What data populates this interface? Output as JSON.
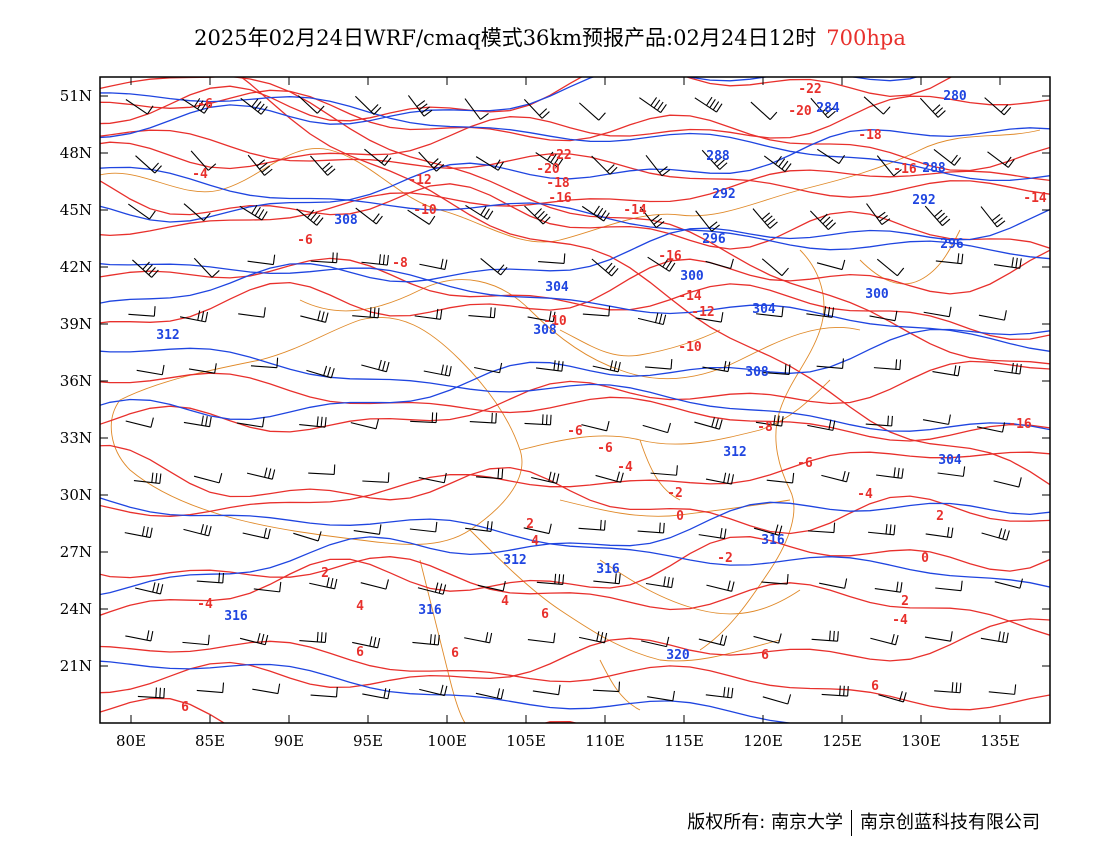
{
  "title": {
    "main": "2025年02月24日WRF/cmaq模式36km预报产品:02月24日12时",
    "level": "700hpa",
    "level_color": "#e8302c"
  },
  "axes": {
    "lat_ticks": [
      "51N",
      "48N",
      "45N",
      "42N",
      "39N",
      "36N",
      "33N",
      "30N",
      "27N",
      "24N",
      "21N"
    ],
    "lon_ticks": [
      "80E",
      "85E",
      "90E",
      "95E",
      "100E",
      "105E",
      "110E",
      "115E",
      "120E",
      "125E",
      "130E",
      "135E"
    ]
  },
  "colors": {
    "temperature": "#e8302c",
    "height": "#1f45e0",
    "border": "#e08a2a",
    "wind": "#000000"
  },
  "temperature_labels": [
    "-22",
    "-20",
    "-18",
    "-16",
    "-14",
    "-12",
    "-10",
    "-8",
    "-6",
    "-4",
    "-2",
    "0",
    "2",
    "4",
    "6"
  ],
  "height_labels": [
    "280",
    "284",
    "288",
    "292",
    "296",
    "300",
    "304",
    "308",
    "312",
    "316",
    "320"
  ],
  "footer": {
    "left": "版权所有: 南京大学",
    "right": "南京创蓝科技有限公司"
  }
}
